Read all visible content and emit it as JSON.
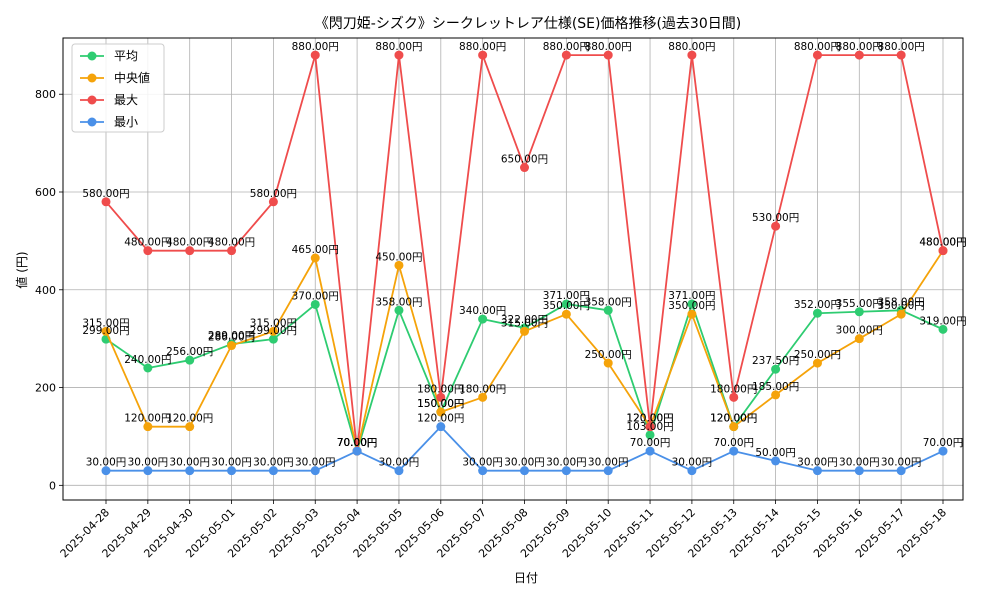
{
  "chart_data": {
    "type": "line",
    "title": "《閃刀姫-シズク》シークレットレア仕様(SE)価格推移(過去30日間)",
    "xlabel": "日付",
    "ylabel": "値 (円)",
    "ylim": [
      -30,
      915
    ],
    "yticks": [
      0,
      200,
      400,
      600,
      800
    ],
    "grid": true,
    "legend_position": "top-left",
    "label_suffix": "円",
    "categories": [
      "2025-04-28",
      "2025-04-29",
      "2025-04-30",
      "2025-05-01",
      "2025-05-02",
      "2025-05-03",
      "2025-05-04",
      "2025-05-05",
      "2025-05-06",
      "2025-05-07",
      "2025-05-08",
      "2025-05-09",
      "2025-05-10",
      "2025-05-11",
      "2025-05-12",
      "2025-05-13",
      "2025-05-14",
      "2025-05-15",
      "2025-05-16",
      "2025-05-17",
      "2025-05-18"
    ],
    "series": [
      {
        "name": "平均",
        "color": "#2ecc71",
        "values": [
          299,
          240,
          256,
          289,
          299,
          370,
          70,
          358,
          150,
          340,
          322,
          371,
          358,
          103,
          371,
          120,
          237.5,
          352,
          355,
          358,
          319
        ]
      },
      {
        "name": "中央値",
        "color": "#f5a30a",
        "values": [
          315,
          120,
          120,
          286,
          315,
          465,
          70,
          450,
          150,
          180,
          315,
          350,
          250,
          120,
          350,
          120,
          185,
          250,
          300,
          350,
          480
        ]
      },
      {
        "name": "最大",
        "color": "#ef4c4c",
        "values": [
          580,
          480,
          480,
          480,
          580,
          880,
          70,
          880,
          180,
          880,
          650,
          880,
          880,
          120,
          880,
          180,
          530,
          880,
          880,
          880,
          480
        ]
      },
      {
        "name": "最小",
        "color": "#4a90e8",
        "values": [
          30,
          30,
          30,
          30,
          30,
          30,
          70,
          30,
          120,
          30,
          30,
          30,
          30,
          70,
          30,
          70,
          50,
          30,
          30,
          30,
          70
        ]
      }
    ]
  }
}
